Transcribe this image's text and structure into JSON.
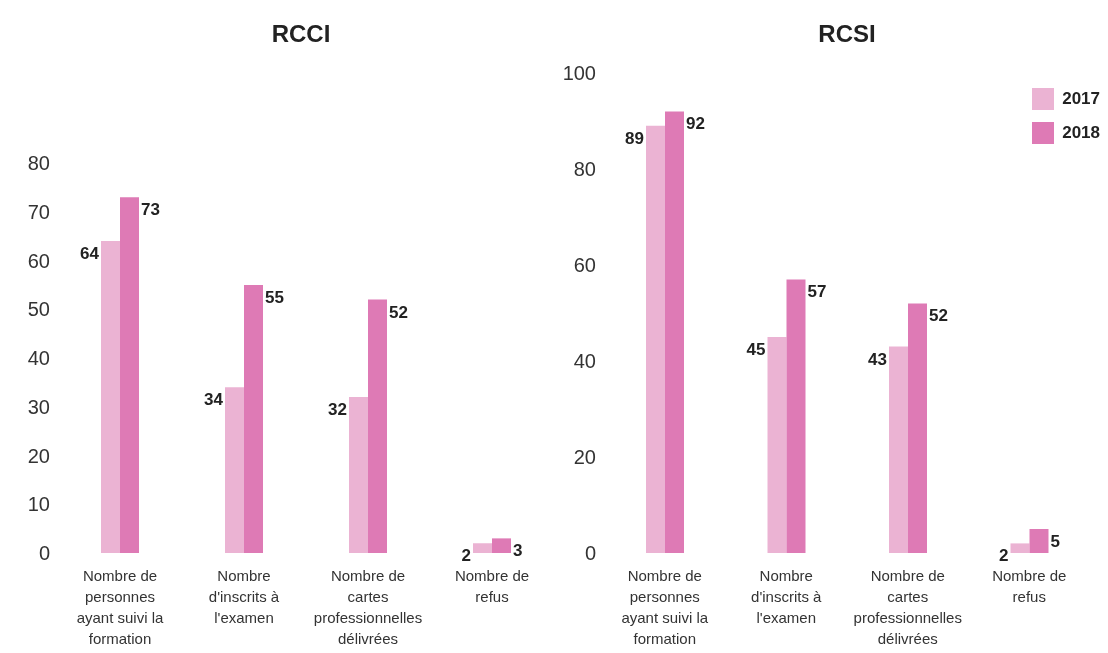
{
  "chart_data": [
    {
      "type": "bar",
      "title": "RCCI",
      "categories": [
        "Nombre de personnes ayant suivi la formation",
        "Nombre d'inscrits à l'examen",
        "Nombre de cartes professionnelles délivrées",
        "Nombre de refus"
      ],
      "series": [
        {
          "color": "#ebb3d3",
          "values": [
            64,
            34,
            32,
            2
          ]
        },
        {
          "color": "#de7ab5",
          "values": [
            73,
            55,
            52,
            3
          ]
        }
      ],
      "ylim": [
        0,
        80
      ],
      "yticks": [
        0,
        10,
        20,
        30,
        40,
        50,
        60,
        70,
        80
      ],
      "grid": false,
      "legend": false,
      "data_labels": true
    },
    {
      "type": "bar",
      "title": "RCSI",
      "categories": [
        "Nombre de personnes ayant suivi la formation",
        "Nombre d'inscrits à l'examen",
        "Nombre de cartes professionnelles délivrées",
        "Nombre de refus"
      ],
      "series": [
        {
          "name": "2017",
          "color": "#ebb3d3",
          "values": [
            89,
            45,
            43,
            2
          ]
        },
        {
          "name": "2018",
          "color": "#de7ab5",
          "values": [
            92,
            57,
            52,
            5
          ]
        }
      ],
      "ylim": [
        0,
        100
      ],
      "yticks": [
        0,
        20,
        40,
        60,
        80,
        100
      ],
      "grid": false,
      "legend": "top right",
      "data_labels": true
    }
  ]
}
